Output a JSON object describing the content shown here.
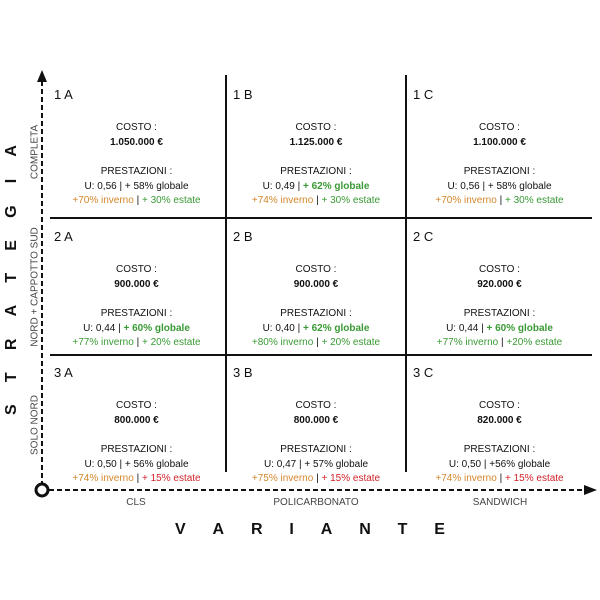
{
  "colors": {
    "k": "#111111",
    "o": "#d4862a",
    "g": "#3a9a35",
    "r": "#d2232a"
  },
  "axes": {
    "x_title": "VARIANTE",
    "y_title": "STRATEGIA",
    "x_labels": [
      "CLS",
      "POLICARBONATO",
      "SANDWICH"
    ],
    "y_labels": [
      "COMPLETA",
      "NORD + CAPPOTTO SUD",
      "SOLO NORD"
    ]
  },
  "cells": [
    [
      {
        "id": "1 A",
        "cost_label": "COSTO :",
        "cost": "1.050.000 €",
        "perf_label": "PRESTAZIONI :",
        "l1": [
          {
            "t": "U: 0,56 | ",
            "c": "k"
          },
          {
            "t": "+ 58% globale",
            "c": "k"
          }
        ],
        "l2": [
          {
            "t": "+70% inverno",
            "c": "o"
          },
          {
            "t": " | ",
            "c": "k"
          },
          {
            "t": "+ 30% estate",
            "c": "g"
          }
        ]
      },
      {
        "id": "1 B",
        "cost_label": "COSTO :",
        "cost": "1.125.000 €",
        "perf_label": "PRESTAZIONI :",
        "l1": [
          {
            "t": "U: 0,49 | ",
            "c": "k"
          },
          {
            "t": "+ 62% globale",
            "c": "g",
            "b": true
          }
        ],
        "l2": [
          {
            "t": "+74% inverno",
            "c": "o"
          },
          {
            "t": " | ",
            "c": "k"
          },
          {
            "t": "+ 30% estate",
            "c": "g"
          }
        ]
      },
      {
        "id": "1 C",
        "cost_label": "COSTO :",
        "cost": "1.100.000 €",
        "perf_label": "PRESTAZIONI :",
        "l1": [
          {
            "t": "U: 0,56 | ",
            "c": "k"
          },
          {
            "t": "+ 58% globale",
            "c": "k"
          }
        ],
        "l2": [
          {
            "t": "+70% inverno",
            "c": "o"
          },
          {
            "t": " | ",
            "c": "k"
          },
          {
            "t": "+ 30% estate",
            "c": "g"
          }
        ]
      }
    ],
    [
      {
        "id": "2 A",
        "cost_label": "COSTO :",
        "cost": "900.000 €",
        "perf_label": "PRESTAZIONI :",
        "l1": [
          {
            "t": "U: 0,44 | ",
            "c": "k"
          },
          {
            "t": "+ 60% globale",
            "c": "g",
            "b": true
          }
        ],
        "l2": [
          {
            "t": "+77% inverno",
            "c": "g"
          },
          {
            "t": " | ",
            "c": "k"
          },
          {
            "t": "+ 20% estate",
            "c": "g"
          }
        ]
      },
      {
        "id": "2 B",
        "cost_label": "COSTO :",
        "cost": "900.000 €",
        "perf_label": "PRESTAZIONI :",
        "l1": [
          {
            "t": "U: 0,40 | ",
            "c": "k"
          },
          {
            "t": "+ 62% globale",
            "c": "g",
            "b": true
          }
        ],
        "l2": [
          {
            "t": "+80% inverno",
            "c": "g"
          },
          {
            "t": " | ",
            "c": "k"
          },
          {
            "t": "+ 20% estate",
            "c": "g"
          }
        ]
      },
      {
        "id": "2 C",
        "cost_label": "COSTO :",
        "cost": "920.000 €",
        "perf_label": "PRESTAZIONI :",
        "l1": [
          {
            "t": "U: 0,44 | ",
            "c": "k"
          },
          {
            "t": "+ 60% globale",
            "c": "g",
            "b": true
          }
        ],
        "l2": [
          {
            "t": "+77% inverno",
            "c": "g"
          },
          {
            "t": " | ",
            "c": "k"
          },
          {
            "t": "+20% estate",
            "c": "g"
          }
        ]
      }
    ],
    [
      {
        "id": "3 A",
        "cost_label": "COSTO :",
        "cost": "800.000 €",
        "perf_label": "PRESTAZIONI :",
        "l1": [
          {
            "t": "U: 0,50 | ",
            "c": "k"
          },
          {
            "t": "+ 56% globale",
            "c": "k"
          }
        ],
        "l2": [
          {
            "t": "+74% inverno",
            "c": "o"
          },
          {
            "t": " | ",
            "c": "k"
          },
          {
            "t": "+ 15% estate",
            "c": "r"
          }
        ]
      },
      {
        "id": "3 B",
        "cost_label": "COSTO :",
        "cost": "800.000 €",
        "perf_label": "PRESTAZIONI :",
        "l1": [
          {
            "t": "U: 0,47 | ",
            "c": "k"
          },
          {
            "t": "+ 57% globale",
            "c": "k"
          }
        ],
        "l2": [
          {
            "t": "+75% inverno",
            "c": "o"
          },
          {
            "t": " | ",
            "c": "k"
          },
          {
            "t": "+ 15% estate",
            "c": "r"
          }
        ]
      },
      {
        "id": "3 C",
        "cost_label": "COSTO :",
        "cost": "820.000 €",
        "perf_label": "PRESTAZIONI :",
        "l1": [
          {
            "t": "U: 0,50 | ",
            "c": "k"
          },
          {
            "t": "+56% globale",
            "c": "k"
          }
        ],
        "l2": [
          {
            "t": "+74% inverno",
            "c": "o"
          },
          {
            "t": " | ",
            "c": "k"
          },
          {
            "t": "+ 15% estate",
            "c": "r"
          }
        ]
      }
    ]
  ]
}
